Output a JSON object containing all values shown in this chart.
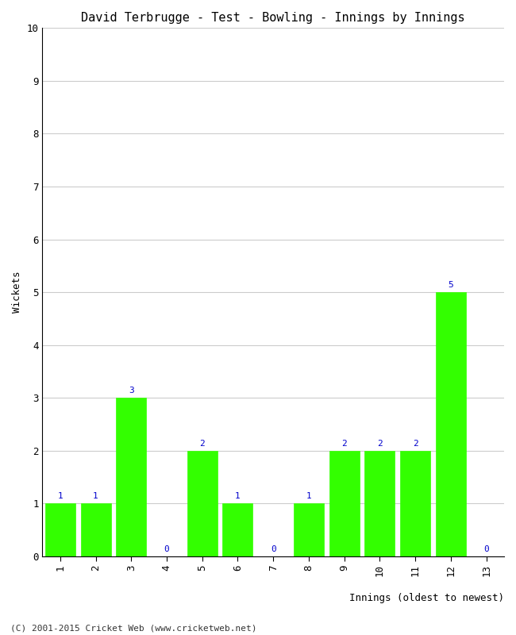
{
  "title": "David Terbrugge - Test - Bowling - Innings by Innings",
  "xlabel": "Innings (oldest to newest)",
  "ylabel": "Wickets",
  "categories": [
    "1",
    "2",
    "3",
    "4",
    "5",
    "6",
    "7",
    "8",
    "9",
    "10",
    "11",
    "12",
    "13"
  ],
  "values": [
    1,
    1,
    3,
    0,
    2,
    1,
    0,
    1,
    2,
    2,
    2,
    5,
    0
  ],
  "bar_color": "#33ff00",
  "bar_edge_color": "#33ff00",
  "label_color": "#0000cc",
  "background_color": "#ffffff",
  "grid_color": "#cccccc",
  "ylim": [
    0,
    10
  ],
  "yticks": [
    0,
    1,
    2,
    3,
    4,
    5,
    6,
    7,
    8,
    9,
    10
  ],
  "title_fontsize": 11,
  "axis_label_fontsize": 9,
  "tick_fontsize": 9,
  "bar_label_fontsize": 8,
  "footer": "(C) 2001-2015 Cricket Web (www.cricketweb.net)"
}
